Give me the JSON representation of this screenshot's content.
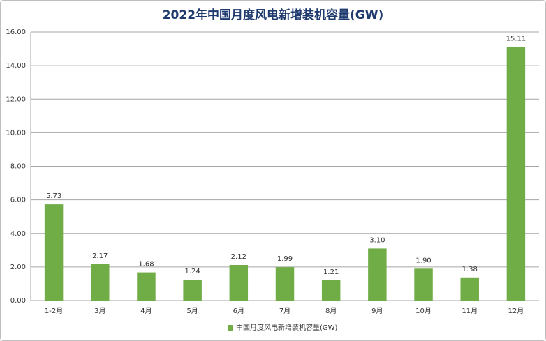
{
  "chart_data": {
    "type": "bar",
    "title": "2022年中国月度风电新增装机容量(GW)",
    "categories": [
      "1-2月",
      "3月",
      "4月",
      "5月",
      "6月",
      "7月",
      "8月",
      "9月",
      "10月",
      "11月",
      "12月"
    ],
    "series": [
      {
        "name": "中国月度风电新增装机容量(GW)",
        "color": "#70ad47",
        "values": [
          5.73,
          2.17,
          1.68,
          1.24,
          2.12,
          1.99,
          1.21,
          3.1,
          1.9,
          1.38,
          15.11
        ],
        "value_labels": [
          "5.73",
          "2.17",
          "1.68",
          "1.24",
          "2.12",
          "1.99",
          "1.21",
          "3.10",
          "1.90",
          "1.38",
          "15.11"
        ]
      }
    ],
    "ylim": [
      0,
      16
    ],
    "yticks": [
      {
        "value": 0,
        "label": "0.00"
      },
      {
        "value": 2,
        "label": "2.00"
      },
      {
        "value": 4,
        "label": "4.00"
      },
      {
        "value": 6,
        "label": "6.00"
      },
      {
        "value": 8,
        "label": "8.00"
      },
      {
        "value": 10,
        "label": "10.00"
      },
      {
        "value": 12,
        "label": "12.00"
      },
      {
        "value": 14,
        "label": "14.00"
      },
      {
        "value": 16,
        "label": "16.00"
      }
    ],
    "grid": true,
    "legend": "bottom"
  }
}
